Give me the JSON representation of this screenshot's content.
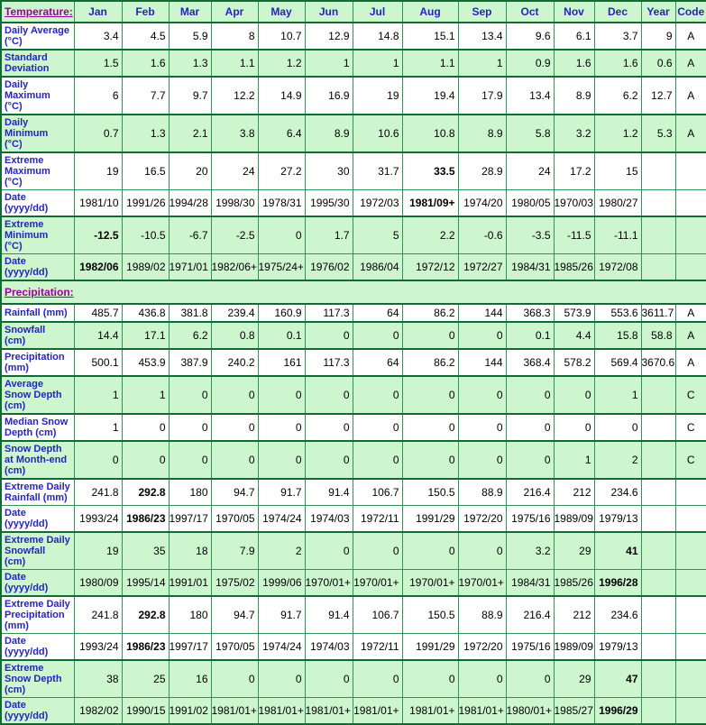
{
  "header": {
    "section_link": "Temperature:",
    "columns": [
      "Jan",
      "Feb",
      "Mar",
      "Apr",
      "May",
      "Jun",
      "Jul",
      "Aug",
      "Sep",
      "Oct",
      "Nov",
      "Dec",
      "Year",
      "Code"
    ]
  },
  "precipitation": {
    "section_link": "Precipitation:"
  },
  "colors": {
    "green_row": "#cdf5ce",
    "border_thin": "#2f9455",
    "border_thick": "#0e6b34",
    "label_blue": "#2424c0",
    "link_purple": "#990099"
  },
  "temperature_rows": [
    {
      "label": "Daily Average\n(°C)",
      "bg": "white",
      "group_start": true,
      "bold": [],
      "values": [
        "3.4",
        "4.5",
        "5.9",
        "8",
        "10.7",
        "12.9",
        "14.8",
        "15.1",
        "13.4",
        "9.6",
        "6.1",
        "3.7",
        "9",
        "A"
      ]
    },
    {
      "label": "Standard\nDeviation",
      "bg": "green",
      "group_start": true,
      "bold": [],
      "values": [
        "1.5",
        "1.6",
        "1.3",
        "1.1",
        "1.2",
        "1",
        "1",
        "1.1",
        "1",
        "0.9",
        "1.6",
        "1.6",
        "0.6",
        "A"
      ]
    },
    {
      "label": "Daily\nMaximum\n(°C)",
      "bg": "white",
      "group_start": true,
      "bold": [],
      "values": [
        "6",
        "7.7",
        "9.7",
        "12.2",
        "14.9",
        "16.9",
        "19",
        "19.4",
        "17.9",
        "13.4",
        "8.9",
        "6.2",
        "12.7",
        "A"
      ]
    },
    {
      "label": "Daily\nMinimum\n(°C)",
      "bg": "green",
      "group_start": true,
      "bold": [],
      "values": [
        "0.7",
        "1.3",
        "2.1",
        "3.8",
        "6.4",
        "8.9",
        "10.6",
        "10.8",
        "8.9",
        "5.8",
        "3.2",
        "1.2",
        "5.3",
        "A"
      ]
    },
    {
      "label": "Extreme\nMaximum\n(°C)",
      "bg": "white",
      "group_start": true,
      "bold": [
        7
      ],
      "values": [
        "19",
        "16.5",
        "20",
        "24",
        "27.2",
        "30",
        "31.7",
        "33.5",
        "28.9",
        "24",
        "17.2",
        "15",
        "",
        ""
      ]
    },
    {
      "label": "Date\n(yyyy/dd)",
      "bg": "white",
      "group_start": false,
      "bold": [
        7
      ],
      "values": [
        "1981/10",
        "1991/26",
        "1994/28",
        "1998/30",
        "1978/31",
        "1995/30",
        "1972/03",
        "1981/09+",
        "1974/20",
        "1980/05",
        "1970/03",
        "1980/27",
        "",
        ""
      ]
    },
    {
      "label": "Extreme\nMinimum\n(°C)",
      "bg": "green",
      "group_start": true,
      "bold": [
        0
      ],
      "values": [
        "-12.5",
        "-10.5",
        "-6.7",
        "-2.5",
        "0",
        "1.7",
        "5",
        "2.2",
        "-0.6",
        "-3.5",
        "-11.5",
        "-11.1",
        "",
        ""
      ]
    },
    {
      "label": "Date\n(yyyy/dd)",
      "bg": "green",
      "group_start": false,
      "bold": [
        0
      ],
      "values": [
        "1982/06",
        "1989/02",
        "1971/01",
        "1982/06+",
        "1975/24+",
        "1976/02",
        "1986/04",
        "1972/12",
        "1972/27",
        "1984/31",
        "1985/26",
        "1972/08",
        "",
        ""
      ]
    }
  ],
  "precipitation_rows": [
    {
      "label": "Rainfall (mm)",
      "bg": "white",
      "group_start": true,
      "bold": [],
      "values": [
        "485.7",
        "436.8",
        "381.8",
        "239.4",
        "160.9",
        "117.3",
        "64",
        "86.2",
        "144",
        "368.3",
        "573.9",
        "553.6",
        "3611.7",
        "A"
      ]
    },
    {
      "label": "Snowfall\n(cm)",
      "bg": "green",
      "group_start": true,
      "bold": [],
      "values": [
        "14.4",
        "17.1",
        "6.2",
        "0.8",
        "0.1",
        "0",
        "0",
        "0",
        "0",
        "0.1",
        "4.4",
        "15.8",
        "58.8",
        "A"
      ]
    },
    {
      "label": "Precipitation\n(mm)",
      "bg": "white",
      "group_start": true,
      "bold": [],
      "values": [
        "500.1",
        "453.9",
        "387.9",
        "240.2",
        "161",
        "117.3",
        "64",
        "86.2",
        "144",
        "368.4",
        "578.2",
        "569.4",
        "3670.6",
        "A"
      ]
    },
    {
      "label": "Average\nSnow Depth\n(cm)",
      "bg": "green",
      "group_start": true,
      "bold": [],
      "values": [
        "1",
        "1",
        "0",
        "0",
        "0",
        "0",
        "0",
        "0",
        "0",
        "0",
        "0",
        "1",
        "",
        "C"
      ]
    },
    {
      "label": "Median Snow\nDepth (cm)",
      "bg": "white",
      "group_start": true,
      "bold": [],
      "values": [
        "1",
        "0",
        "0",
        "0",
        "0",
        "0",
        "0",
        "0",
        "0",
        "0",
        "0",
        "0",
        "",
        "C"
      ]
    },
    {
      "label": "Snow Depth\nat Month-end\n(cm)",
      "bg": "green",
      "group_start": true,
      "bold": [],
      "values": [
        "0",
        "0",
        "0",
        "0",
        "0",
        "0",
        "0",
        "0",
        "0",
        "0",
        "1",
        "2",
        "",
        "C"
      ]
    },
    {
      "label": "Extreme Daily\nRainfall (mm)",
      "bg": "white",
      "group_start": true,
      "bold": [
        1
      ],
      "values": [
        "241.8",
        "292.8",
        "180",
        "94.7",
        "91.7",
        "91.4",
        "106.7",
        "150.5",
        "88.9",
        "216.4",
        "212",
        "234.6",
        "",
        ""
      ]
    },
    {
      "label": "Date\n(yyyy/dd)",
      "bg": "white",
      "group_start": false,
      "bold": [
        1
      ],
      "values": [
        "1993/24",
        "1986/23",
        "1997/17",
        "1970/05",
        "1974/24",
        "1974/03",
        "1972/11",
        "1991/29",
        "1972/20",
        "1975/16",
        "1989/09",
        "1979/13",
        "",
        ""
      ]
    },
    {
      "label": "Extreme Daily\nSnowfall\n(cm)",
      "bg": "green",
      "group_start": true,
      "bold": [
        11
      ],
      "values": [
        "19",
        "35",
        "18",
        "7.9",
        "2",
        "0",
        "0",
        "0",
        "0",
        "3.2",
        "29",
        "41",
        "",
        ""
      ]
    },
    {
      "label": "Date\n(yyyy/dd)",
      "bg": "green",
      "group_start": false,
      "bold": [
        11
      ],
      "values": [
        "1980/09",
        "1995/14",
        "1991/01",
        "1975/02",
        "1999/06",
        "1970/01+",
        "1970/01+",
        "1970/01+",
        "1970/01+",
        "1984/31",
        "1985/26",
        "1996/28",
        "",
        ""
      ]
    },
    {
      "label": "Extreme Daily\nPrecipitation\n(mm)",
      "bg": "white",
      "group_start": true,
      "bold": [
        1
      ],
      "values": [
        "241.8",
        "292.8",
        "180",
        "94.7",
        "91.7",
        "91.4",
        "106.7",
        "150.5",
        "88.9",
        "216.4",
        "212",
        "234.6",
        "",
        ""
      ]
    },
    {
      "label": "Date\n(yyyy/dd)",
      "bg": "white",
      "group_start": false,
      "bold": [
        1
      ],
      "values": [
        "1993/24",
        "1986/23",
        "1997/17",
        "1970/05",
        "1974/24",
        "1974/03",
        "1972/11",
        "1991/29",
        "1972/20",
        "1975/16",
        "1989/09",
        "1979/13",
        "",
        ""
      ]
    },
    {
      "label": "Extreme\nSnow Depth\n(cm)",
      "bg": "green",
      "group_start": true,
      "bold": [
        11
      ],
      "values": [
        "38",
        "25",
        "16",
        "0",
        "0",
        "0",
        "0",
        "0",
        "0",
        "0",
        "29",
        "47",
        "",
        ""
      ]
    },
    {
      "label": "Date\n(yyyy/dd)",
      "bg": "green",
      "group_start": false,
      "bold": [
        11
      ],
      "values": [
        "1982/02",
        "1990/15",
        "1991/02",
        "1981/01+",
        "1981/01+",
        "1981/01+",
        "1981/01+",
        "1981/01+",
        "1981/01+",
        "1980/01+",
        "1985/27",
        "1996/29",
        "",
        ""
      ]
    }
  ]
}
